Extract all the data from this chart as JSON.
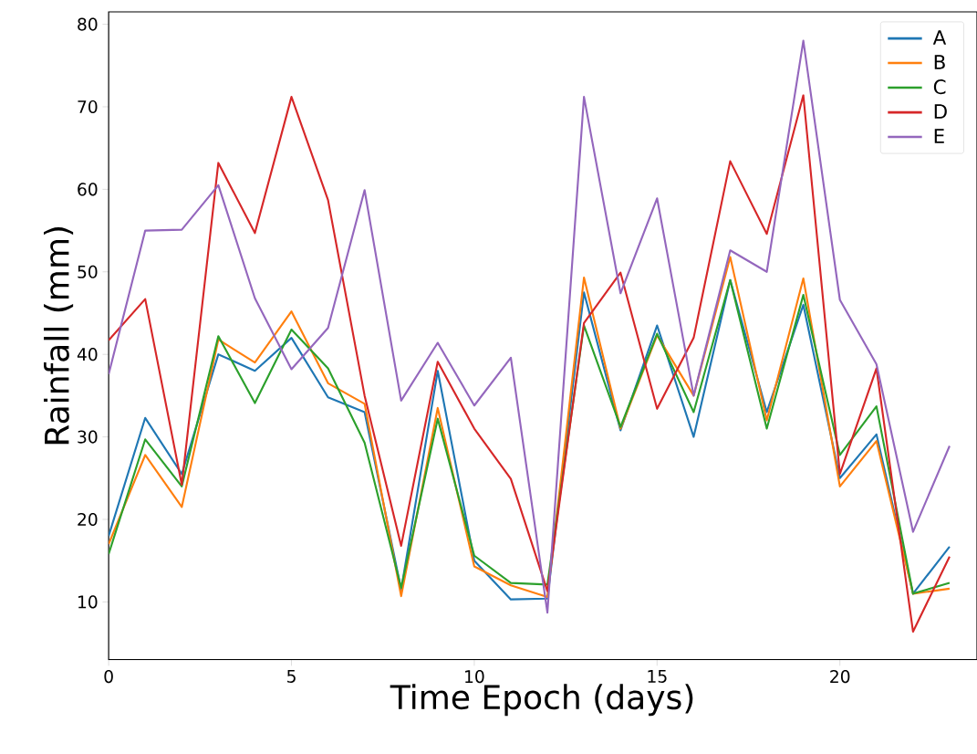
{
  "chart_data": {
    "type": "line",
    "xlabel": "Time Epoch (days)",
    "ylabel": "Rainfall (mm)",
    "x": [
      0,
      1,
      2,
      3,
      4,
      5,
      6,
      7,
      8,
      9,
      10,
      11,
      12,
      13,
      14,
      15,
      16,
      17,
      18,
      19,
      20,
      21,
      22,
      23
    ],
    "series": [
      {
        "name": "A",
        "color": "#1f77b4",
        "values": [
          18,
          32.3,
          25.5,
          40,
          38,
          42,
          34.8,
          33,
          11.5,
          38,
          15,
          10.3,
          10.4,
          47.5,
          30.8,
          43.5,
          30,
          49,
          33,
          46,
          25,
          30.3,
          11,
          16.7
        ]
      },
      {
        "name": "B",
        "color": "#ff7f0e",
        "values": [
          17,
          27.8,
          21.5,
          41.8,
          39,
          45.2,
          36.5,
          34,
          10.7,
          33.5,
          14.3,
          12,
          10.6,
          49.3,
          31,
          42.3,
          35,
          51.8,
          32,
          49.2,
          24,
          29.5,
          11,
          11.6
        ]
      },
      {
        "name": "C",
        "color": "#2ca02c",
        "values": [
          15.8,
          29.7,
          24,
          42.2,
          34.1,
          43,
          38.3,
          29.3,
          11.7,
          32.2,
          15.6,
          12.3,
          12.1,
          43.5,
          31.2,
          42.5,
          33,
          49,
          31,
          47.2,
          27.8,
          33.7,
          11,
          12.3
        ]
      },
      {
        "name": "D",
        "color": "#d62728",
        "values": [
          41.7,
          46.7,
          24.2,
          63.2,
          54.7,
          71.2,
          58.7,
          35,
          16.8,
          39.1,
          31,
          24.9,
          11.3,
          43.8,
          49.9,
          33.4,
          42,
          63.4,
          54.6,
          71.4,
          25.5,
          38.3,
          6.4,
          15.5
        ]
      },
      {
        "name": "E",
        "color": "#9467bd",
        "values": [
          37.6,
          55,
          55.1,
          60.5,
          46.8,
          38.2,
          43.2,
          59.9,
          34.4,
          41.4,
          33.8,
          39.6,
          8.7,
          71.2,
          47.4,
          58.9,
          35,
          52.6,
          50,
          78,
          46.6,
          38.8,
          18.5,
          28.9
        ]
      }
    ],
    "xlim": [
      0,
      23.75
    ],
    "ylim": [
      3,
      81.5
    ],
    "xticks": [
      0,
      5,
      10,
      15,
      20
    ],
    "yticks": [
      10,
      20,
      30,
      40,
      50,
      60,
      70,
      80
    ],
    "legend": "top right",
    "marker": "none",
    "line_style": "solid",
    "grid": false
  }
}
